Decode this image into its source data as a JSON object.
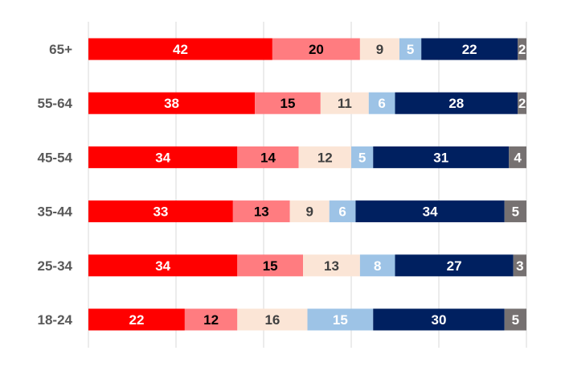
{
  "chart_data": {
    "type": "bar",
    "orientation": "horizontal",
    "stacked": true,
    "categories": [
      "65+",
      "55-64",
      "45-54",
      "35-44",
      "25-34",
      "18-24"
    ],
    "series": [
      {
        "values": [
          42,
          38,
          34,
          33,
          34,
          22
        ],
        "color": "#ff0000",
        "label_color": "#ffffff"
      },
      {
        "values": [
          20,
          15,
          14,
          13,
          15,
          12
        ],
        "color": "#ff7c80",
        "label_color": "#000000"
      },
      {
        "values": [
          9,
          11,
          12,
          9,
          13,
          16
        ],
        "color": "#fbe5d6",
        "label_color": "#404040"
      },
      {
        "values": [
          5,
          6,
          5,
          6,
          8,
          15
        ],
        "color": "#9dc3e6",
        "label_color": "#ffffff"
      },
      {
        "values": [
          22,
          28,
          31,
          34,
          27,
          30
        ],
        "color": "#002060",
        "label_color": "#ffffff"
      },
      {
        "values": [
          2,
          2,
          4,
          5,
          3,
          5
        ],
        "color": "#767171",
        "label_color": "#ffffff"
      }
    ],
    "xlim": [
      0,
      100
    ],
    "grid": true,
    "legend": "none"
  }
}
